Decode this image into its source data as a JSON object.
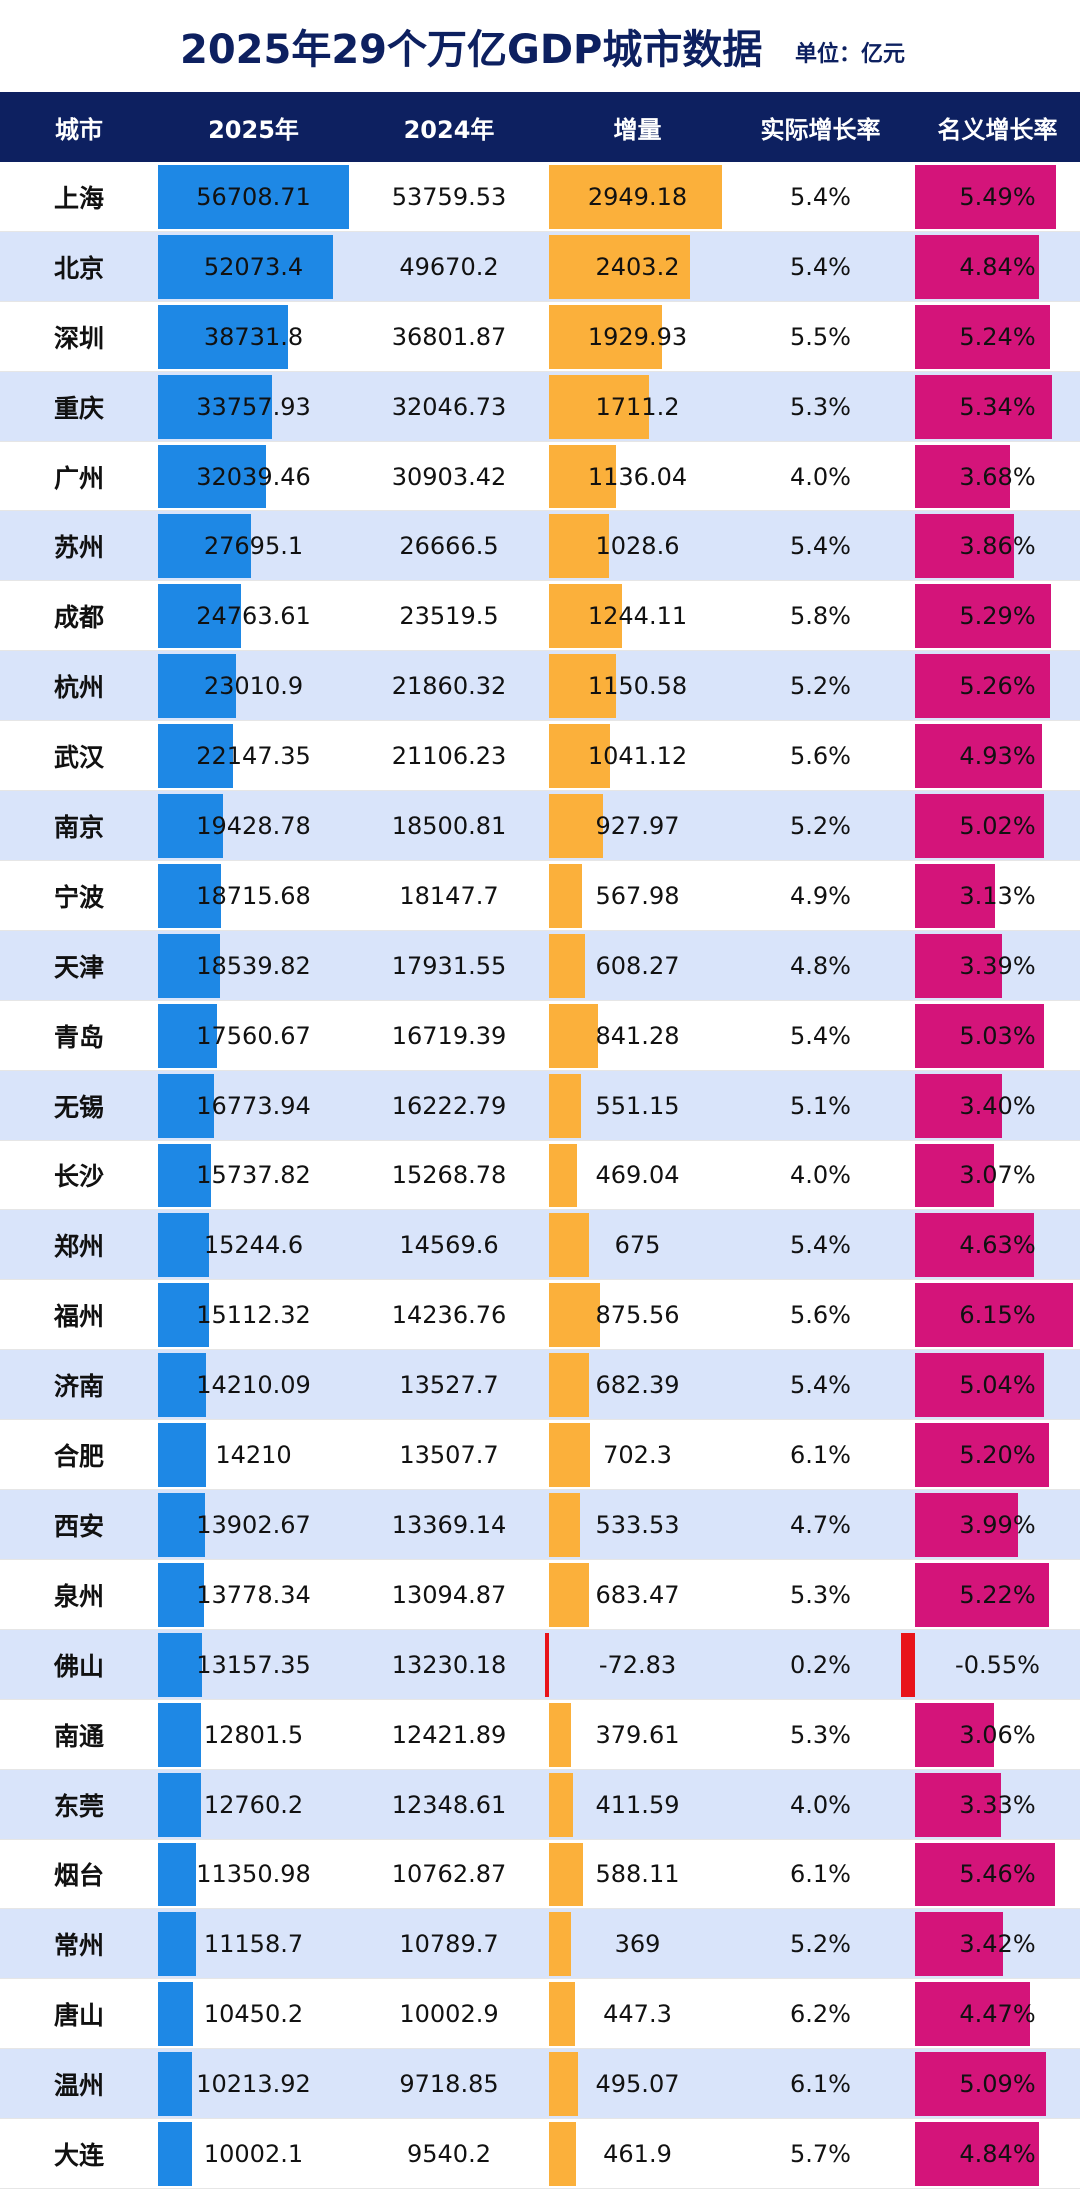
{
  "header": {
    "title": "2025年29个万亿GDP城市数据",
    "unit": "单位：亿元"
  },
  "table": {
    "columns": [
      "城市",
      "2025年",
      "2024年",
      "增量",
      "实际增长率",
      "名义增长率"
    ],
    "rows": [
      [
        "上海",
        56708.71,
        53759.53,
        2949.18,
        "5.4%",
        "5.49%"
      ],
      [
        "北京",
        52073.4,
        49670.2,
        2403.2,
        "5.4%",
        "4.84%"
      ],
      [
        "深圳",
        38731.8,
        36801.87,
        1929.93,
        "5.5%",
        "5.24%"
      ],
      [
        "重庆",
        33757.93,
        32046.73,
        1711.2,
        "5.3%",
        "5.34%"
      ],
      [
        "广州",
        32039.46,
        30903.42,
        1136.04,
        "4.0%",
        "3.68%"
      ],
      [
        "苏州",
        27695.1,
        26666.5,
        1028.6,
        "5.4%",
        "3.86%"
      ],
      [
        "成都",
        24763.61,
        23519.5,
        1244.11,
        "5.8%",
        "5.29%"
      ],
      [
        "杭州",
        23010.9,
        21860.32,
        1150.58,
        "5.2%",
        "5.26%"
      ],
      [
        "武汉",
        22147.35,
        21106.23,
        1041.12,
        "5.6%",
        "4.93%"
      ],
      [
        "南京",
        19428.78,
        18500.81,
        927.97,
        "5.2%",
        "5.02%"
      ],
      [
        "宁波",
        18715.68,
        18147.7,
        567.98,
        "4.9%",
        "3.13%"
      ],
      [
        "天津",
        18539.82,
        17931.55,
        608.27,
        "4.8%",
        "3.39%"
      ],
      [
        "青岛",
        17560.67,
        16719.39,
        841.28,
        "5.4%",
        "5.03%"
      ],
      [
        "无锡",
        16773.94,
        16222.79,
        551.15,
        "5.1%",
        "3.40%"
      ],
      [
        "长沙",
        15737.82,
        15268.78,
        469.04,
        "4.0%",
        "3.07%"
      ],
      [
        "郑州",
        15244.6,
        14569.6,
        675,
        "5.4%",
        "4.63%"
      ],
      [
        "福州",
        15112.32,
        14236.76,
        875.56,
        "5.6%",
        "6.15%"
      ],
      [
        "济南",
        14210.09,
        13527.7,
        682.39,
        "5.4%",
        "5.04%"
      ],
      [
        "合肥",
        14210,
        13507.7,
        702.3,
        "6.1%",
        "5.20%"
      ],
      [
        "西安",
        13902.67,
        13369.14,
        533.53,
        "4.7%",
        "3.99%"
      ],
      [
        "泉州",
        13778.34,
        13094.87,
        683.47,
        "5.3%",
        "5.22%"
      ],
      [
        "佛山",
        13157.35,
        13230.18,
        -72.83,
        "0.2%",
        "-0.55%"
      ],
      [
        "南通",
        12801.5,
        12421.89,
        379.61,
        "5.3%",
        "3.06%"
      ],
      [
        "东莞",
        12760.2,
        12348.61,
        411.59,
        "4.0%",
        "3.33%"
      ],
      [
        "烟台",
        11350.98,
        10762.87,
        588.11,
        "6.1%",
        "5.46%"
      ],
      [
        "常州",
        11158.7,
        10789.7,
        369,
        "5.2%",
        "3.42%"
      ],
      [
        "唐山",
        10450.2,
        10002.9,
        447.3,
        "6.2%",
        "4.47%"
      ],
      [
        "温州",
        10213.92,
        9718.85,
        495.07,
        "6.1%",
        "5.09%"
      ],
      [
        "大连",
        10002.1,
        9540.2,
        461.9,
        "5.7%",
        "4.84%"
      ]
    ]
  }
}
